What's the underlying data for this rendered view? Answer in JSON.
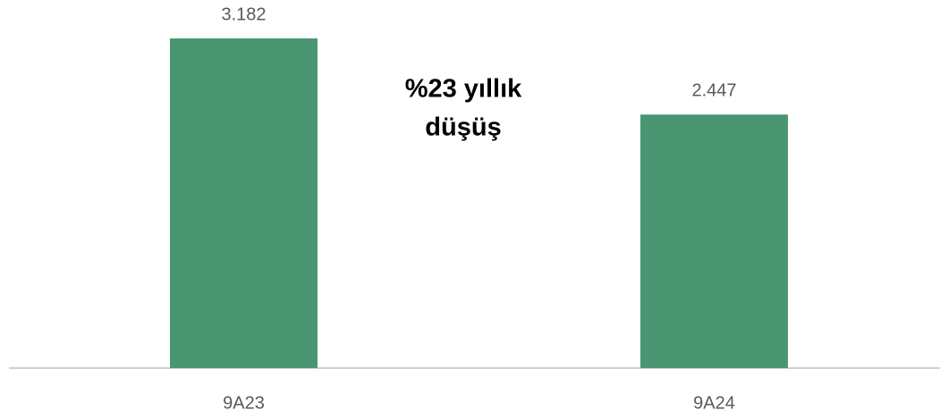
{
  "chart_data": {
    "type": "bar",
    "categories": [
      "9A23",
      "9A24"
    ],
    "values": [
      3182,
      2447
    ],
    "value_labels": [
      "3.182",
      "2.447"
    ],
    "color": "#4a9673",
    "annotation": [
      "%23 yıllık",
      "düşüş"
    ]
  }
}
